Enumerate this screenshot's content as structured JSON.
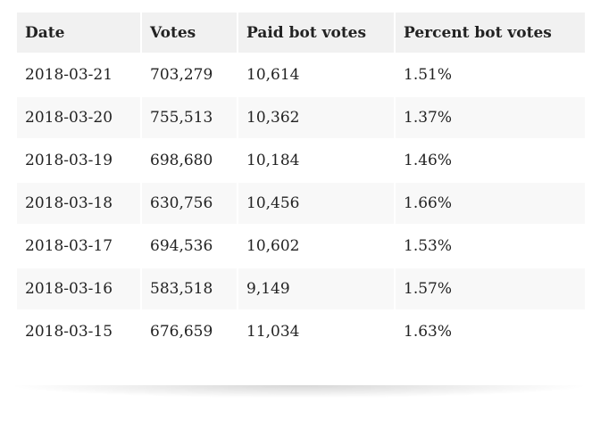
{
  "table": {
    "headers": [
      "Date",
      "Votes",
      "Paid bot votes",
      "Percent bot votes"
    ],
    "rows": [
      [
        "2018-03-21",
        "703,279",
        "10,614",
        "1.51%"
      ],
      [
        "2018-03-20",
        "755,513",
        "10,362",
        "1.37%"
      ],
      [
        "2018-03-19",
        "698,680",
        "10,184",
        "1.46%"
      ],
      [
        "2018-03-18",
        "630,756",
        "10,456",
        "1.66%"
      ],
      [
        "2018-03-17",
        "694,536",
        "10,602",
        "1.53%"
      ],
      [
        "2018-03-16",
        "583,518",
        "9,149",
        "1.57%"
      ],
      [
        "2018-03-15",
        "676,659",
        "11,034",
        "1.63%"
      ]
    ]
  }
}
